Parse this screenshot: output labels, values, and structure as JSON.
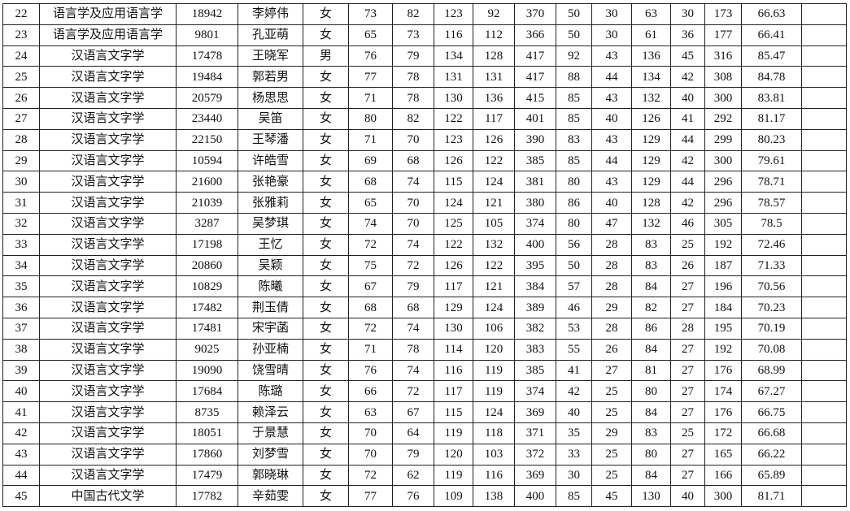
{
  "rows": [
    [
      "22",
      "语言学及应用语言学",
      "18942",
      "李婷伟",
      "女",
      "73",
      "82",
      "123",
      "92",
      "370",
      "50",
      "30",
      "63",
      "30",
      "173",
      "66.63",
      ""
    ],
    [
      "23",
      "语言学及应用语言学",
      "9801",
      "孔亚萌",
      "女",
      "65",
      "73",
      "116",
      "112",
      "366",
      "50",
      "30",
      "61",
      "36",
      "177",
      "66.41",
      ""
    ],
    [
      "24",
      "汉语言文字学",
      "17478",
      "王晓军",
      "男",
      "76",
      "79",
      "134",
      "128",
      "417",
      "92",
      "43",
      "136",
      "45",
      "316",
      "85.47",
      ""
    ],
    [
      "25",
      "汉语言文字学",
      "19484",
      "郭若男",
      "女",
      "77",
      "78",
      "131",
      "131",
      "417",
      "88",
      "44",
      "134",
      "42",
      "308",
      "84.78",
      ""
    ],
    [
      "26",
      "汉语言文字学",
      "20579",
      "杨思思",
      "女",
      "71",
      "78",
      "130",
      "136",
      "415",
      "85",
      "43",
      "132",
      "40",
      "300",
      "83.81",
      ""
    ],
    [
      "27",
      "汉语言文字学",
      "23440",
      "吴笛",
      "女",
      "80",
      "82",
      "122",
      "117",
      "401",
      "85",
      "40",
      "126",
      "41",
      "292",
      "81.17",
      ""
    ],
    [
      "28",
      "汉语言文字学",
      "22150",
      "王琴潘",
      "女",
      "71",
      "70",
      "123",
      "126",
      "390",
      "83",
      "43",
      "129",
      "44",
      "299",
      "80.23",
      ""
    ],
    [
      "29",
      "汉语言文字学",
      "10594",
      "许皓雪",
      "女",
      "69",
      "68",
      "126",
      "122",
      "385",
      "85",
      "44",
      "129",
      "42",
      "300",
      "79.61",
      ""
    ],
    [
      "30",
      "汉语言文字学",
      "21600",
      "张艳豪",
      "女",
      "68",
      "74",
      "115",
      "124",
      "381",
      "80",
      "43",
      "129",
      "44",
      "296",
      "78.71",
      ""
    ],
    [
      "31",
      "汉语言文字学",
      "21039",
      "张雅莉",
      "女",
      "65",
      "70",
      "124",
      "121",
      "380",
      "86",
      "40",
      "128",
      "42",
      "296",
      "78.57",
      ""
    ],
    [
      "32",
      "汉语言文字学",
      "3287",
      "吴梦琪",
      "女",
      "74",
      "70",
      "125",
      "105",
      "374",
      "80",
      "47",
      "132",
      "46",
      "305",
      "78.5",
      ""
    ],
    [
      "33",
      "汉语言文字学",
      "17198",
      "王忆",
      "女",
      "72",
      "74",
      "122",
      "132",
      "400",
      "56",
      "28",
      "83",
      "25",
      "192",
      "72.46",
      ""
    ],
    [
      "34",
      "汉语言文字学",
      "20860",
      "吴颖",
      "女",
      "75",
      "72",
      "126",
      "122",
      "395",
      "50",
      "28",
      "83",
      "26",
      "187",
      "71.33",
      ""
    ],
    [
      "35",
      "汉语言文字学",
      "10829",
      "陈曦",
      "女",
      "67",
      "79",
      "117",
      "121",
      "384",
      "57",
      "28",
      "84",
      "27",
      "196",
      "70.56",
      ""
    ],
    [
      "36",
      "汉语言文字学",
      "17482",
      "荆玉倩",
      "女",
      "68",
      "68",
      "129",
      "124",
      "389",
      "46",
      "29",
      "82",
      "27",
      "184",
      "70.23",
      ""
    ],
    [
      "37",
      "汉语言文字学",
      "17481",
      "宋宇菡",
      "女",
      "72",
      "74",
      "130",
      "106",
      "382",
      "53",
      "28",
      "86",
      "28",
      "195",
      "70.19",
      ""
    ],
    [
      "38",
      "汉语言文字学",
      "9025",
      "孙亚楠",
      "女",
      "71",
      "78",
      "114",
      "120",
      "383",
      "55",
      "26",
      "84",
      "27",
      "192",
      "70.08",
      ""
    ],
    [
      "39",
      "汉语言文字学",
      "19090",
      "饶雪晴",
      "女",
      "76",
      "74",
      "116",
      "119",
      "385",
      "41",
      "27",
      "81",
      "27",
      "176",
      "68.99",
      ""
    ],
    [
      "40",
      "汉语言文字学",
      "17684",
      "陈璐",
      "女",
      "66",
      "72",
      "117",
      "119",
      "374",
      "42",
      "25",
      "80",
      "27",
      "174",
      "67.27",
      ""
    ],
    [
      "41",
      "汉语言文字学",
      "8735",
      "赖泽云",
      "女",
      "63",
      "67",
      "115",
      "124",
      "369",
      "40",
      "25",
      "84",
      "27",
      "176",
      "66.75",
      ""
    ],
    [
      "42",
      "汉语言文字学",
      "18051",
      "于景慧",
      "女",
      "70",
      "64",
      "119",
      "118",
      "371",
      "35",
      "29",
      "83",
      "25",
      "172",
      "66.68",
      ""
    ],
    [
      "43",
      "汉语言文字学",
      "17860",
      "刘梦雪",
      "女",
      "70",
      "79",
      "120",
      "103",
      "372",
      "33",
      "25",
      "80",
      "27",
      "165",
      "66.22",
      ""
    ],
    [
      "44",
      "汉语言文字学",
      "17479",
      "郭晓琳",
      "女",
      "72",
      "62",
      "119",
      "116",
      "369",
      "30",
      "25",
      "84",
      "27",
      "166",
      "65.89",
      ""
    ],
    [
      "45",
      "中国古代文学",
      "17782",
      "辛茹雯",
      "女",
      "77",
      "76",
      "109",
      "138",
      "400",
      "85",
      "45",
      "130",
      "40",
      "300",
      "81.71",
      ""
    ]
  ]
}
